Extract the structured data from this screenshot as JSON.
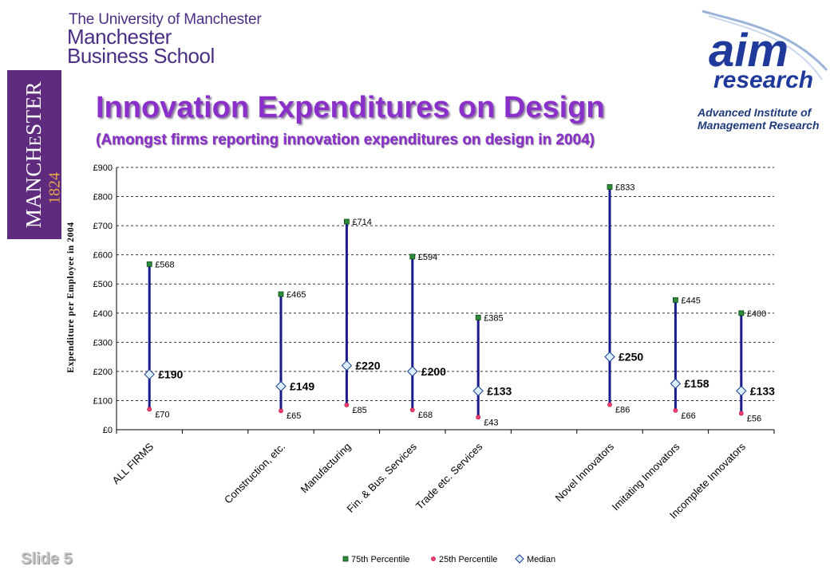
{
  "header": {
    "university": "The University of Manchester",
    "school_line1": "Manchester",
    "school_line2": "Business School",
    "crest_text_1": "MANCH",
    "crest_text_2": "E",
    "crest_text_3": "STER",
    "crest_year": "1824",
    "aim_logo_text_1": "aim",
    "aim_logo_text_2": "research",
    "aim_sub_line1": "Advanced Institute of",
    "aim_sub_line2": "Management Research"
  },
  "slide": {
    "title": "Innovation Expenditures on Design",
    "subtitle": "(Amongst firms reporting innovation expenditures on design in 2004)",
    "number": "Slide 5"
  },
  "colors": {
    "title": "#8a2fc9",
    "range_line": "#1a1a8a",
    "p75_marker": "#2e8b3a",
    "p25_marker": "#ff3c6e",
    "median_marker": "#d8f0ff",
    "crest": "#5e2b7e"
  },
  "chart_data": {
    "type": "scatter",
    "title": "",
    "xlabel": "",
    "ylabel": "Expenditure per Employee in 2004",
    "ylim": [
      0,
      900
    ],
    "y_ticks": [
      0,
      100,
      200,
      300,
      400,
      500,
      600,
      700,
      800,
      900
    ],
    "y_tick_labels": [
      "£0",
      "£100",
      "£200",
      "£300",
      "£400",
      "£500",
      "£600",
      "£700",
      "£800",
      "£900"
    ],
    "grid": "horizontal-dashed",
    "legend_position": "bottom",
    "categories": [
      "ALL FIRMS",
      "",
      "Construction, etc.",
      "Manufacturing",
      "Fin. & Bus. Services",
      "Trade etc. Services",
      "",
      "Novel Innovators",
      "Imitating Innovators",
      "Incomplete Innovators"
    ],
    "series": [
      {
        "name": "75th Percentile",
        "marker": "square",
        "values": [
          568,
          null,
          465,
          714,
          594,
          385,
          null,
          833,
          445,
          400
        ],
        "labels": [
          "£568",
          "",
          "£465",
          "£714",
          "£594",
          "£385",
          "",
          "£833",
          "£445",
          "£400"
        ]
      },
      {
        "name": "25th Percentile",
        "marker": "circle",
        "values": [
          70,
          null,
          65,
          85,
          68,
          43,
          null,
          86,
          66,
          56
        ],
        "labels": [
          "£70",
          "",
          "£65",
          "£85",
          "£68",
          "£43",
          "",
          "£86",
          "£66",
          "£56"
        ]
      },
      {
        "name": "Median",
        "marker": "diamond",
        "values": [
          190,
          null,
          149,
          220,
          200,
          133,
          null,
          250,
          158,
          133
        ],
        "labels": [
          "£190",
          "",
          "£149",
          "£220",
          "£200",
          "£133",
          "",
          "£250",
          "£158",
          "£133"
        ]
      }
    ]
  }
}
